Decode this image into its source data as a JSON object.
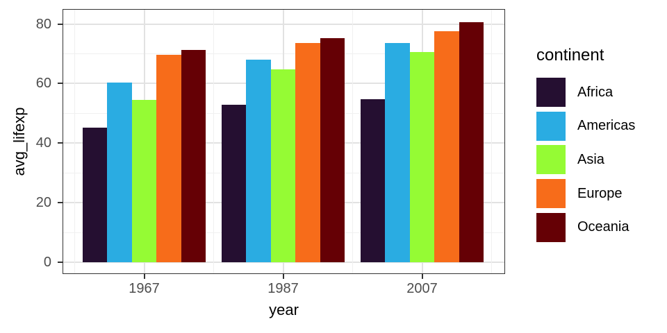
{
  "chart_data": {
    "type": "bar",
    "title": "",
    "xlabel": "year",
    "ylabel": "avg_lifexp",
    "categories": [
      "1967",
      "1987",
      "2007"
    ],
    "series": [
      {
        "name": "Africa",
        "color": "#250f31",
        "values": [
          45.2,
          52.9,
          54.7
        ]
      },
      {
        "name": "Americas",
        "color": "#2aace2",
        "values": [
          60.4,
          68.0,
          73.7
        ]
      },
      {
        "name": "Asia",
        "color": "#95fb34",
        "values": [
          54.5,
          64.8,
          70.6
        ]
      },
      {
        "name": "Europe",
        "color": "#f76c1a",
        "values": [
          69.7,
          73.6,
          77.6
        ]
      },
      {
        "name": "Oceania",
        "color": "#650005",
        "values": [
          71.4,
          75.3,
          80.7
        ]
      }
    ],
    "ylim": [
      0,
      85
    ],
    "y_major_ticks": [
      0,
      20,
      40,
      60,
      80
    ],
    "y_minor_ticks": [
      10,
      30,
      50,
      70
    ],
    "y_tick_labels": [
      "0",
      "20",
      "40",
      "60",
      "80"
    ],
    "grid": true,
    "legend_position": "right"
  },
  "legend": {
    "title": "continent"
  },
  "style": {
    "panel_background": "#ffffff",
    "panel_border": "#333333",
    "grid_major": "#e2e2e2",
    "grid_minor": "#f0f0f0",
    "axis_text": "#4d4d4d",
    "title_text": "#000000"
  }
}
